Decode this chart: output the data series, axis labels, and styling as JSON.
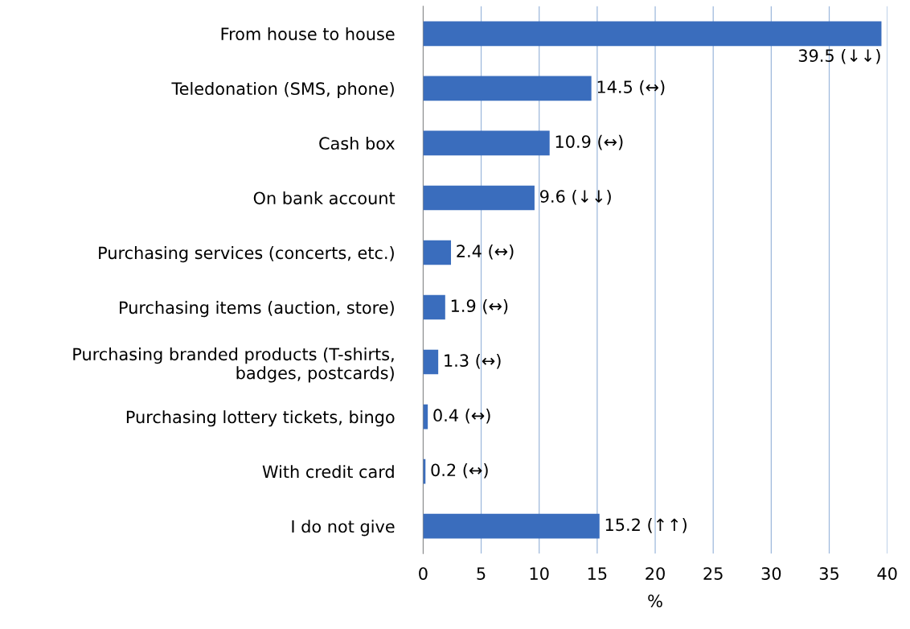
{
  "chart_data": {
    "type": "bar",
    "orientation": "horizontal",
    "categories": [
      "From house to house",
      "Teledonation (SMS, phone)",
      "Cash box",
      "On bank account",
      "Purchasing services (concerts, etc.)",
      "Purchasing items (auction, store)",
      "Purchasing branded products (T-shirts,\nbadges, postcards)",
      "Purchasing lottery tickets, bingo",
      "With credit card",
      "I do not give"
    ],
    "values": [
      39.5,
      14.5,
      10.9,
      9.6,
      2.4,
      1.9,
      1.3,
      0.4,
      0.2,
      15.2
    ],
    "value_labels": [
      "39.5 (↓↓)",
      "14.5 (↔)",
      "10.9 (↔)",
      "9.6 (↓↓)",
      "2.4 (↔)",
      "1.9 (↔)",
      "1.3 (↔)",
      "0.4 (↔)",
      "0.2 (↔)",
      "15.2 (↑↑)"
    ],
    "color": "#3a6dbd",
    "xlim": [
      0,
      40
    ],
    "xticks": [
      0,
      5,
      10,
      15,
      20,
      25,
      30,
      35,
      40
    ],
    "xlabel": "%",
    "grid": "x",
    "legend": false
  }
}
